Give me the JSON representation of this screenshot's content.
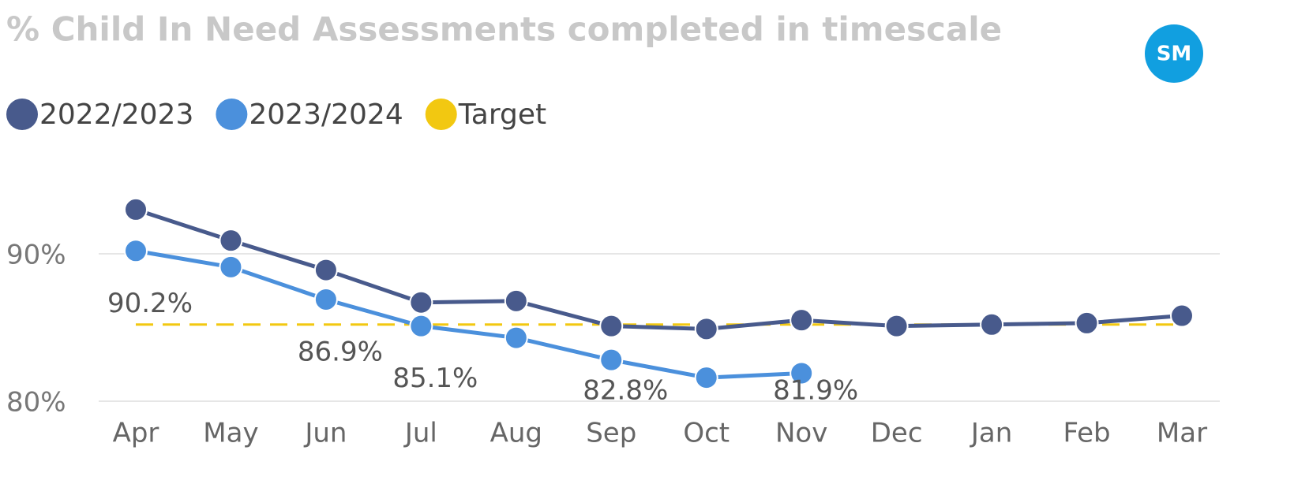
{
  "chart_data": {
    "type": "line",
    "title": "% Child In Need Assessments completed in timescale",
    "badge": "SM",
    "categories": [
      "Apr",
      "May",
      "Jun",
      "Jul",
      "Aug",
      "Sep",
      "Oct",
      "Nov",
      "Dec",
      "Jan",
      "Feb",
      "Mar"
    ],
    "series": [
      {
        "name": "2022/2023",
        "color": "#485a8c",
        "line_style": "solid",
        "markers": true,
        "values": [
          93.0,
          90.9,
          88.9,
          86.7,
          86.8,
          85.1,
          84.9,
          85.5,
          85.1,
          85.2,
          85.3,
          85.8
        ]
      },
      {
        "name": "2023/2024",
        "color": "#4b90dc",
        "line_style": "solid",
        "markers": true,
        "values": [
          90.2,
          89.1,
          86.9,
          85.1,
          84.3,
          82.8,
          81.6,
          81.9,
          null,
          null,
          null,
          null
        ],
        "value_labels": [
          "90.2%",
          null,
          "86.9%",
          "85.1%",
          null,
          "82.8%",
          null,
          "81.9%",
          null,
          null,
          null,
          null
        ]
      },
      {
        "name": "Target",
        "color": "#f2c811",
        "line_style": "dashed",
        "markers": false,
        "values": [
          85.2,
          85.2,
          85.2,
          85.2,
          85.2,
          85.2,
          85.2,
          85.2,
          85.2,
          85.2,
          85.2,
          85.2
        ]
      }
    ],
    "ylim": [
      80,
      95
    ],
    "yticks": [
      {
        "value": 80,
        "label": "80%"
      },
      {
        "value": 90,
        "label": "90%"
      }
    ],
    "grid": true,
    "legend": "top-left"
  }
}
